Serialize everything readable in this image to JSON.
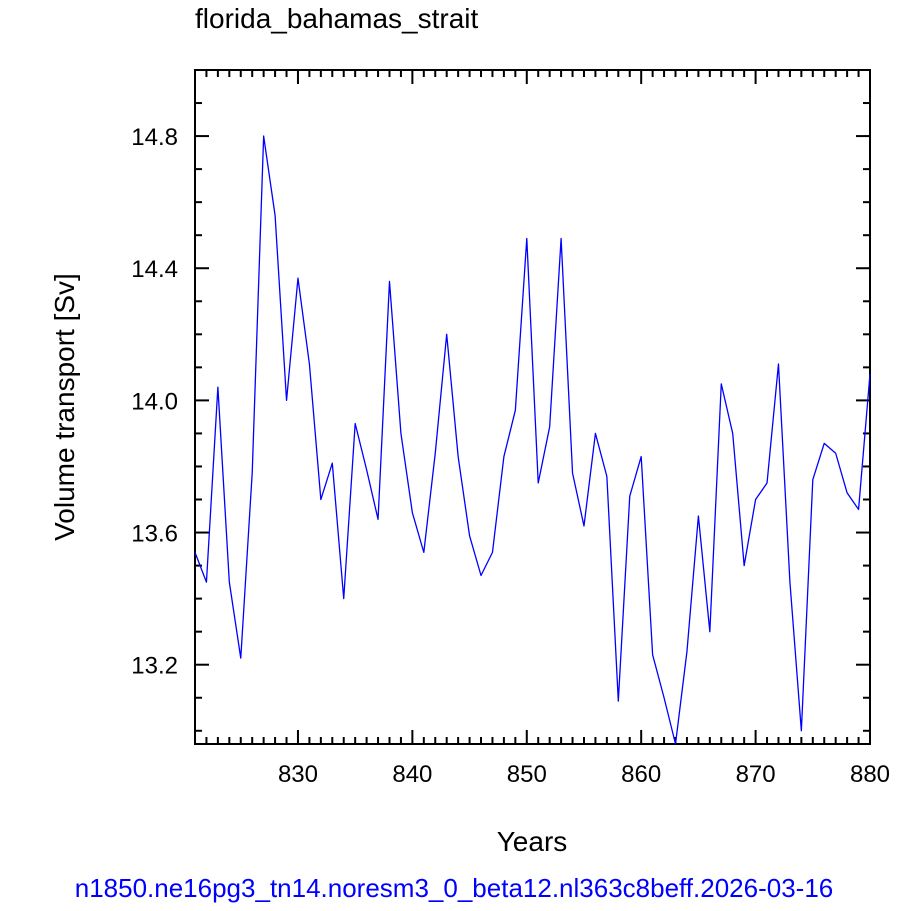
{
  "chart_data": {
    "type": "line",
    "title": "florida_bahamas_strait",
    "xlabel": "Years",
    "ylabel": "Volume transport [Sv]",
    "caption": "n1850.ne16pg3_tn14.noresm3_0_beta12.nl363c8beff.2026-03-16",
    "xlim": [
      821,
      880
    ],
    "ylim": [
      12.96,
      15.0
    ],
    "x_ticks": [
      830,
      840,
      850,
      860,
      870,
      880
    ],
    "y_ticks": [
      13.2,
      13.6,
      14.0,
      14.4,
      14.8
    ],
    "y_tick_labels": [
      "13.2",
      "13.6",
      "14.0",
      "14.4",
      "14.8"
    ],
    "grid": false,
    "series": [
      {
        "color": "#0000ff",
        "x": [
          821,
          822,
          823,
          824,
          825,
          826,
          827,
          828,
          829,
          830,
          831,
          832,
          833,
          834,
          835,
          836,
          837,
          838,
          839,
          840,
          841,
          842,
          843,
          844,
          845,
          846,
          847,
          848,
          849,
          850,
          851,
          852,
          853,
          854,
          855,
          856,
          857,
          858,
          859,
          860,
          861,
          862,
          863,
          864,
          865,
          866,
          867,
          868,
          869,
          870,
          871,
          872,
          873,
          874,
          875,
          876,
          877,
          878,
          879,
          880
        ],
        "y": [
          13.54,
          13.45,
          14.04,
          13.45,
          13.22,
          13.78,
          14.8,
          14.56,
          14.0,
          14.37,
          14.11,
          13.7,
          13.81,
          13.4,
          13.93,
          13.79,
          13.64,
          14.36,
          13.9,
          13.66,
          13.54,
          13.84,
          14.2,
          13.83,
          13.59,
          13.47,
          13.54,
          13.83,
          13.97,
          14.49,
          13.75,
          13.92,
          14.49,
          13.78,
          13.62,
          13.9,
          13.77,
          13.09,
          13.71,
          13.83,
          13.23,
          13.1,
          12.96,
          13.24,
          13.65,
          13.3,
          14.05,
          13.9,
          13.5,
          13.7,
          13.75,
          14.11,
          13.45,
          13.0,
          13.76,
          13.87,
          13.84,
          13.72,
          13.67,
          14.08
        ]
      }
    ]
  }
}
